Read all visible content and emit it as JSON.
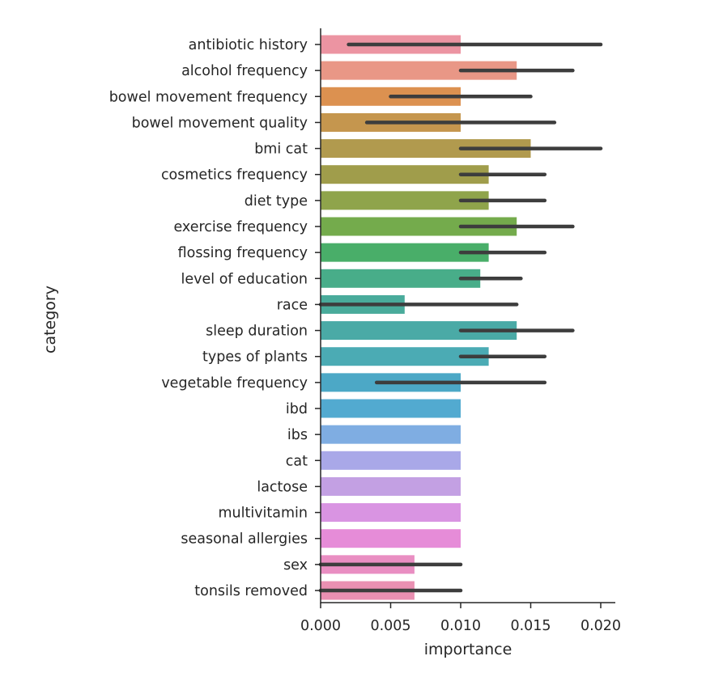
{
  "chart_data": {
    "type": "bar",
    "orientation": "horizontal",
    "xlabel": "importance",
    "ylabel": "category",
    "xlim": [
      0,
      0.021
    ],
    "xticks": [
      0.0,
      0.005,
      0.01,
      0.015,
      0.02
    ],
    "xtick_labels": [
      "0.000",
      "0.005",
      "0.010",
      "0.015",
      "0.020"
    ],
    "grid": false,
    "categories": [
      "antibiotic history",
      "alcohol frequency",
      "bowel movement frequency",
      "bowel movement quality",
      "bmi cat",
      "cosmetics frequency",
      "diet type",
      "exercise frequency",
      "flossing frequency",
      "level of education",
      "race",
      "sleep duration",
      "types of plants",
      "vegetable frequency",
      "ibd",
      "ibs",
      "cat",
      "lactose",
      "multivitamin",
      "seasonal allergies",
      "sex",
      "tonsils removed"
    ],
    "values": [
      0.01,
      0.014,
      0.01,
      0.01,
      0.015,
      0.012,
      0.012,
      0.014,
      0.012,
      0.0114,
      0.006,
      0.014,
      0.012,
      0.01,
      0.01,
      0.01,
      0.01,
      0.01,
      0.01,
      0.01,
      0.0067,
      0.0067
    ],
    "ci": [
      [
        0.002,
        0.02
      ],
      [
        0.01,
        0.018
      ],
      [
        0.005,
        0.015
      ],
      [
        0.0033,
        0.0167
      ],
      [
        0.01,
        0.02
      ],
      [
        0.01,
        0.016
      ],
      [
        0.01,
        0.016
      ],
      [
        0.01,
        0.018
      ],
      [
        0.01,
        0.016
      ],
      [
        0.01,
        0.0143
      ],
      [
        0.0,
        0.014
      ],
      [
        0.01,
        0.018
      ],
      [
        0.01,
        0.016
      ],
      [
        0.004,
        0.016
      ],
      null,
      null,
      null,
      null,
      null,
      null,
      [
        0.0,
        0.01
      ],
      [
        0.0,
        0.01
      ]
    ],
    "colors": [
      "#ec94a2",
      "#e99786",
      "#dc9150",
      "#c5964e",
      "#b19a4e",
      "#a09d4b",
      "#8fa44b",
      "#74ab4c",
      "#49ae69",
      "#48ad89",
      "#49ab9b",
      "#4aaaa6",
      "#4babb4",
      "#4ca8c6",
      "#52aad0",
      "#7fade2",
      "#a9a8e8",
      "#c3a0e3",
      "#d994e2",
      "#e68cd8",
      "#e98ec2",
      "#ea90b2"
    ]
  }
}
